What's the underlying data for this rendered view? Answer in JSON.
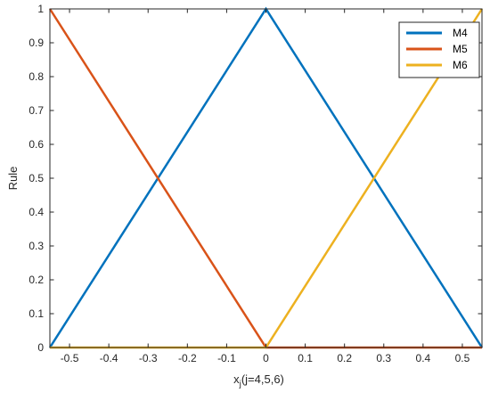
{
  "chart_data": {
    "type": "line",
    "title": "",
    "xlabel_main": "x",
    "xlabel_sub": "j",
    "xlabel_rest": "(j=4,5,6)",
    "ylabel": "Rule",
    "xlim": [
      -0.55,
      0.55
    ],
    "ylim": [
      0,
      1
    ],
    "xticks": [
      -0.5,
      -0.4,
      -0.3,
      -0.2,
      -0.1,
      0,
      0.1,
      0.2,
      0.3,
      0.4,
      0.5
    ],
    "xtick_labels": [
      "-0.5",
      "-0.4",
      "-0.3",
      "-0.2",
      "-0.1",
      "0",
      "0.1",
      "0.2",
      "0.3",
      "0.4",
      "0.5"
    ],
    "yticks": [
      0,
      0.1,
      0.2,
      0.3,
      0.4,
      0.5,
      0.6,
      0.7,
      0.8,
      0.9,
      1
    ],
    "ytick_labels": [
      "0",
      "0.1",
      "0.2",
      "0.3",
      "0.4",
      "0.5",
      "0.6",
      "0.7",
      "0.8",
      "0.9",
      "1"
    ],
    "grid": false,
    "legend_position": "top-right",
    "series": [
      {
        "name": "M4",
        "color": "#0072BD",
        "x": [
          -0.55,
          0,
          0.55
        ],
        "y": [
          0,
          1,
          0
        ]
      },
      {
        "name": "M5",
        "color": "#D95319",
        "x": [
          -0.55,
          0,
          0.55
        ],
        "y": [
          1,
          0,
          0
        ]
      },
      {
        "name": "M6",
        "color": "#EDB120",
        "x": [
          -0.55,
          0,
          0.55
        ],
        "y": [
          0,
          0,
          1
        ]
      }
    ]
  }
}
